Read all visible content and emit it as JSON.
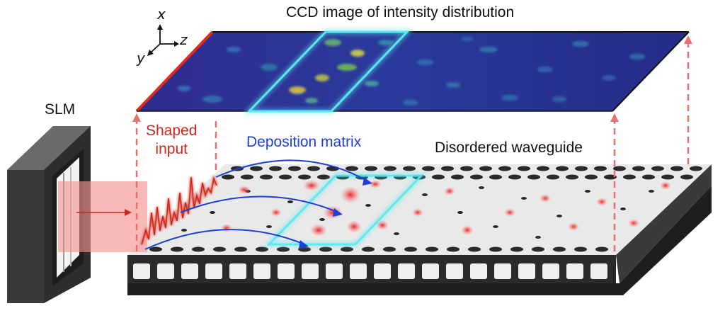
{
  "labels": {
    "title": "CCD image of intensity distribution",
    "slm": "SLM",
    "shaped_line1": "Shaped",
    "shaped_line2": "input",
    "deposition": "Deposition matrix",
    "waveguide": "Disordered waveguide"
  },
  "axes": {
    "x": "x",
    "y": "y",
    "z": "z"
  },
  "colors": {
    "ccd_background": "#2a2a8a",
    "ccd_highlight": "#58e8f0",
    "shaped_input": "#c8281e",
    "deposition_arrows": "#1f3fd6",
    "projection_lines": "#e87070",
    "waveguide_surface": "#e9e9e9",
    "waveguide_side": "#2b2b2b",
    "slm_body": "#3a3a3a"
  }
}
